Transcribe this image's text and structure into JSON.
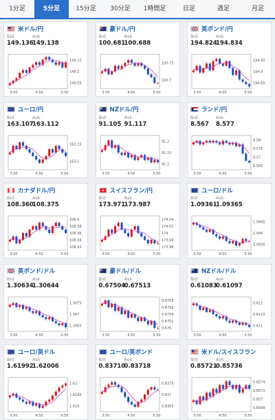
{
  "tabs": [
    "1分足",
    "5分足",
    "15分足",
    "30分足",
    "1時間足",
    "日足",
    "週足",
    "月足"
  ],
  "active_tab": 1,
  "labels": {
    "bid": "Bid",
    "ask": "Ask"
  },
  "colors": {
    "up": "#d02020",
    "down": "#2050c0",
    "ma": "#c040c0",
    "accent": "#2a6fc9"
  },
  "cards": [
    {
      "pair": "米ドル/円",
      "flag": "us",
      "bid": "149.136",
      "ask": "149.138",
      "yticks": [
        "149.15",
        "149.1",
        "149.05"
      ],
      "xticks": [
        "3:50",
        "4:50",
        "5:50"
      ],
      "chart_data": {
        "type": "candlestick",
        "closes": [
          149.06,
          149.07,
          149.08,
          149.1,
          149.11,
          149.1,
          149.12,
          149.13,
          149.14,
          149.13,
          149.15,
          149.16,
          149.15,
          149.14,
          149.13,
          149.14,
          149.12,
          149.14
        ],
        "ylim": [
          149.04,
          149.17
        ]
      }
    },
    {
      "pair": "豪ドル/円",
      "flag": "au",
      "bid": "100.681",
      "ask": "100.688",
      "yticks": [
        "100.75",
        "100.7"
      ],
      "xticks": [
        "3:50",
        "4:50",
        "5:50"
      ],
      "chart_data": {
        "type": "candlestick",
        "closes": [
          100.72,
          100.73,
          100.71,
          100.72,
          100.74,
          100.73,
          100.74,
          100.75,
          100.76,
          100.75,
          100.74,
          100.75,
          100.74,
          100.73,
          100.71,
          100.7,
          100.68,
          100.68
        ],
        "ylim": [
          100.66,
          100.78
        ]
      }
    },
    {
      "pair": "英ポンド/円",
      "flag": "gb",
      "bid": "194.824",
      "ask": "194.834",
      "yticks": [
        "194.95",
        "194.9",
        "194.85"
      ],
      "xticks": [
        "3:50",
        "4:50",
        "5:50"
      ],
      "chart_data": {
        "type": "candlestick",
        "closes": [
          194.9,
          194.92,
          194.89,
          194.91,
          194.93,
          194.9,
          194.94,
          194.95,
          194.93,
          194.92,
          194.94,
          194.91,
          194.88,
          194.9,
          194.86,
          194.85,
          194.84,
          194.83
        ],
        "ylim": [
          194.82,
          194.97
        ]
      }
    },
    {
      "pair": "ユーロ/円",
      "flag": "eu",
      "bid": "163.107",
      "ask": "163.112",
      "yticks": [
        "163.15",
        "163.1"
      ],
      "xticks": [
        "3:50",
        "4:50",
        "5:50"
      ],
      "chart_data": {
        "type": "candlestick",
        "closes": [
          163.12,
          163.14,
          163.13,
          163.15,
          163.14,
          163.13,
          163.12,
          163.11,
          163.1,
          163.09,
          163.1,
          163.11,
          163.13,
          163.12,
          163.14,
          163.13,
          163.12,
          163.11
        ],
        "ylim": [
          163.07,
          163.17
        ]
      }
    },
    {
      "pair": "NZドル/円",
      "flag": "nz",
      "bid": "91.105",
      "ask": "91.117",
      "yticks": [
        "91.2",
        "91.15",
        "91.1"
      ],
      "xticks": [
        "3:50",
        "4:50",
        "5:50"
      ],
      "chart_data": {
        "type": "candlestick",
        "closes": [
          91.16,
          91.18,
          91.2,
          91.17,
          91.18,
          91.15,
          91.14,
          91.15,
          91.13,
          91.14,
          91.12,
          91.13,
          91.14,
          91.12,
          91.13,
          91.11,
          91.12,
          91.11
        ],
        "ylim": [
          91.08,
          91.22
        ]
      }
    },
    {
      "pair": "ランド/円",
      "flag": "za",
      "bid": "8.567",
      "ask": "8.577",
      "yticks": [
        "8.58",
        "8.575",
        "8.57",
        "8.565"
      ],
      "xticks": [
        "3:50",
        "4:50",
        "5:50"
      ],
      "chart_data": {
        "type": "candlestick",
        "closes": [
          8.578,
          8.579,
          8.577,
          8.578,
          8.579,
          8.578,
          8.579,
          8.578,
          8.577,
          8.579,
          8.578,
          8.577,
          8.578,
          8.576,
          8.577,
          8.572,
          8.568,
          8.567
        ],
        "ylim": [
          8.563,
          8.582
        ]
      }
    },
    {
      "pair": "カナダドル/円",
      "flag": "ca",
      "bid": "108.360",
      "ask": "108.375",
      "yticks": [
        "108.4",
        "108.38",
        "108.36",
        "108.34",
        "108.32"
      ],
      "xticks": [
        "3:50",
        "4:50",
        "5:50"
      ],
      "chart_data": {
        "type": "candlestick",
        "closes": [
          108.34,
          108.35,
          108.33,
          108.34,
          108.36,
          108.35,
          108.37,
          108.38,
          108.37,
          108.39,
          108.38,
          108.37,
          108.36,
          108.38,
          108.39,
          108.38,
          108.37,
          108.36
        ],
        "ylim": [
          108.31,
          108.41
        ]
      }
    },
    {
      "pair": "スイスフラン/円",
      "flag": "ch",
      "bid": "173.971",
      "ask": "173.987",
      "yticks": [
        "174.04",
        "174.02",
        "174",
        "173.98",
        "173.96"
      ],
      "xticks": [
        "3:50",
        "4:50",
        "5:50"
      ],
      "chart_data": {
        "type": "candlestick",
        "closes": [
          173.98,
          173.99,
          174.01,
          174.0,
          174.02,
          174.03,
          174.01,
          174.0,
          173.99,
          174.01,
          174.02,
          174.0,
          173.99,
          173.98,
          173.97,
          173.98,
          173.97,
          173.97
        ],
        "ylim": [
          173.95,
          174.05
        ]
      }
    },
    {
      "pair": "ユーロ/ドル",
      "flag": "eu",
      "bid": "1.09361",
      "ask": "1.09365",
      "yticks": [
        "1.0945",
        "1.094",
        "1.0935"
      ],
      "xticks": [
        "3:50",
        "4:50",
        "5:50"
      ],
      "chart_data": {
        "type": "candlestick",
        "closes": [
          1.0944,
          1.0943,
          1.0942,
          1.0941,
          1.094,
          1.0941,
          1.0939,
          1.0938,
          1.0937,
          1.0938,
          1.0936,
          1.0935,
          1.0936,
          1.0934,
          1.0935,
          1.0937,
          1.0936,
          1.0936
        ],
        "ylim": [
          1.0932,
          1.0947
        ]
      }
    },
    {
      "pair": "英ポンド/ドル",
      "flag": "gb",
      "bid": "1.30634",
      "ask": "1.30644",
      "yticks": [
        "1.3075",
        "1.307",
        "1.3065"
      ],
      "xticks": [
        "3:50",
        "4:50",
        "5:50"
      ],
      "chart_data": {
        "type": "candlestick",
        "closes": [
          1.3074,
          1.3075,
          1.3073,
          1.3074,
          1.3072,
          1.3073,
          1.3071,
          1.307,
          1.3071,
          1.3069,
          1.3068,
          1.3067,
          1.3068,
          1.3066,
          1.3065,
          1.3064,
          1.3065,
          1.3063
        ],
        "ylim": [
          1.3061,
          1.3078
        ]
      }
    },
    {
      "pair": "豪ドル/ドル",
      "flag": "au",
      "bid": "0.67504",
      "ask": "0.67513",
      "yticks": [
        "0.6758",
        "0.6756",
        "0.6754",
        "0.6752",
        "0.675"
      ],
      "xticks": [
        "3:50",
        "4:50",
        "5:50"
      ],
      "chart_data": {
        "type": "candlestick",
        "closes": [
          0.6757,
          0.6758,
          0.6756,
          0.6757,
          0.6755,
          0.6756,
          0.6754,
          0.6755,
          0.6753,
          0.6754,
          0.6753,
          0.6752,
          0.6753,
          0.6752,
          0.6751,
          0.6752,
          0.675,
          0.675
        ],
        "ylim": [
          0.6749,
          0.6759
        ]
      }
    },
    {
      "pair": "NZドル/ドル",
      "flag": "nz",
      "bid": "0.61083",
      "ask": "0.61097",
      "yticks": [
        "0.612",
        "0.6115",
        "0.611"
      ],
      "xticks": [
        "3:50",
        "4:50",
        "5:50"
      ],
      "chart_data": {
        "type": "candlestick",
        "closes": [
          0.6119,
          0.6118,
          0.6116,
          0.6117,
          0.6115,
          0.6116,
          0.6114,
          0.6113,
          0.6112,
          0.6113,
          0.6111,
          0.611,
          0.6111,
          0.611,
          0.6109,
          0.611,
          0.6109,
          0.6108
        ],
        "ylim": [
          0.6106,
          0.6122
        ]
      }
    },
    {
      "pair": "ユーロ/英ドル",
      "flag": "eu",
      "bid": "1.61992",
      "ask": "1.62006",
      "yticks": [
        "1.62",
        "1.6195",
        "1.619"
      ],
      "xticks": [
        "3:50",
        "4:50",
        "5:50"
      ],
      "chart_data": {
        "type": "candlestick",
        "closes": [
          1.6194,
          1.6195,
          1.6193,
          1.6192,
          1.6191,
          1.619,
          1.6191,
          1.6189,
          1.619,
          1.6188,
          1.6189,
          1.6191,
          1.6192,
          1.6194,
          1.6196,
          1.6198,
          1.6199,
          1.62
        ],
        "ylim": [
          1.6186,
          1.6203
        ]
      }
    },
    {
      "pair": "ユーロ/英ポンド",
      "flag": "eu",
      "bid": "0.83710",
      "ask": "0.83718",
      "yticks": [
        "0.8375",
        "0.837",
        "0.8365"
      ],
      "xticks": [
        "3:50",
        "4:50",
        "5:50"
      ],
      "chart_data": {
        "type": "candlestick",
        "closes": [
          0.837,
          0.8372,
          0.8373,
          0.8374,
          0.8373,
          0.8372,
          0.837,
          0.8368,
          0.8366,
          0.8365,
          0.8364,
          0.8366,
          0.8367,
          0.8369,
          0.8371,
          0.8372,
          0.8371,
          0.8371
        ],
        "ylim": [
          0.8362,
          0.8376
        ]
      }
    },
    {
      "pair": "米ドル/スイスフラン",
      "flag": "us",
      "bid": "0.85721",
      "ask": "0.85736",
      "yticks": [
        "0.8574",
        "0.8572",
        "0.857",
        "0.8568"
      ],
      "xticks": [
        "3:50",
        "4:50",
        "5:50"
      ],
      "chart_data": {
        "type": "candlestick",
        "closes": [
          0.8569,
          0.8568,
          0.857,
          0.8569,
          0.8571,
          0.857,
          0.8572,
          0.8571,
          0.8573,
          0.8572,
          0.8574,
          0.8573,
          0.8572,
          0.8573,
          0.8571,
          0.8572,
          0.8573,
          0.8572
        ],
        "ylim": [
          0.8566,
          0.8575
        ]
      }
    }
  ]
}
